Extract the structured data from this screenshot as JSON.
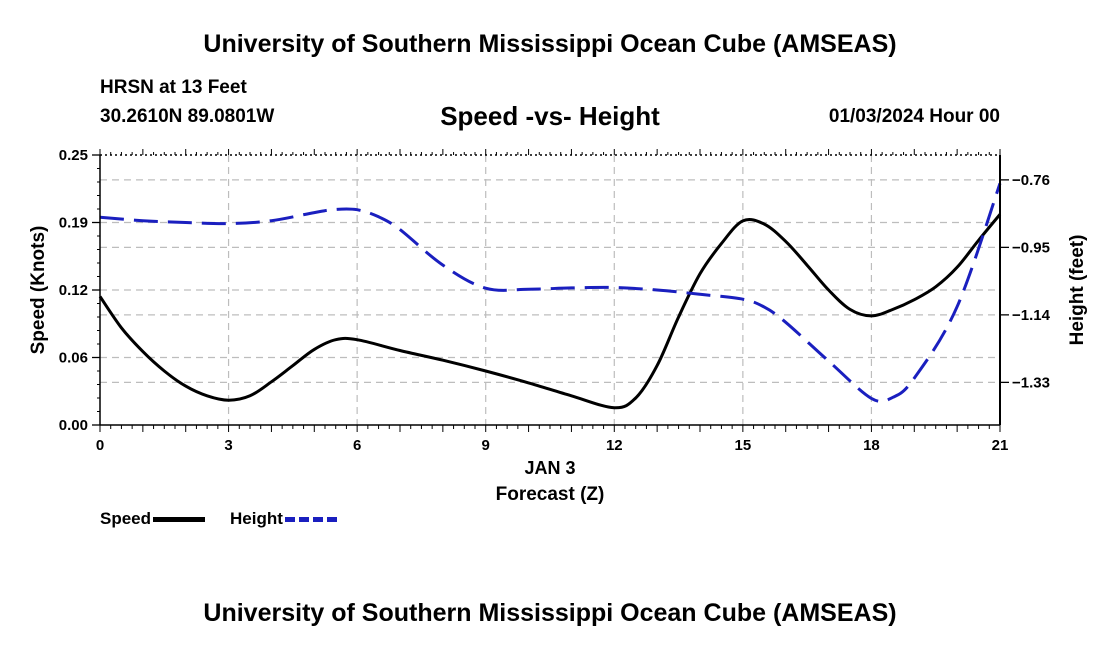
{
  "header": {
    "title": "University of Southern Mississippi Ocean Cube (AMSEAS)",
    "station": "HRSN at 13 Feet",
    "coords": "30.2610N  89.0801W",
    "subtitle": "Speed -vs- Height",
    "datetime": "01/03/2024 Hour 00"
  },
  "footer": {
    "title": "University of Southern Mississippi Ocean Cube (AMSEAS)"
  },
  "legend": {
    "speed": "Speed",
    "height": "Height"
  },
  "colors": {
    "speed": "#000000",
    "height": "#1a1fbf",
    "grid": "#bdbdbd"
  },
  "chart_data": {
    "type": "line",
    "title": "Speed -vs- Height",
    "xlabel": "Forecast (Z)",
    "xlabel_date": "JAN 3",
    "ylabel": "Speed (Knots)",
    "y2label": "Height (feet)",
    "xlim": [
      0,
      21
    ],
    "ylim": [
      0,
      0.25
    ],
    "y2lim": [
      -1.45,
      -0.69
    ],
    "x_ticks": [
      0,
      3,
      6,
      9,
      12,
      15,
      18,
      21
    ],
    "x_tick_labels": [
      "0",
      "3",
      "6",
      "9",
      "12",
      "15",
      "18",
      "21"
    ],
    "y_ticks": [
      0,
      0.0625,
      0.125,
      0.1875,
      0.25
    ],
    "y_tick_labels": [
      "0.00",
      "0.06",
      "0.12",
      "0.19",
      "0.25"
    ],
    "y2_ticks": [
      -0.76,
      -0.95,
      -1.14,
      -1.33
    ],
    "y2_tick_labels": [
      "−0.76",
      "−0.95",
      "−1.14",
      "−1.33"
    ],
    "grid": true,
    "series": [
      {
        "name": "Speed",
        "axis": "left",
        "style": "solid",
        "x": [
          0,
          0.5,
          1,
          1.5,
          2,
          2.5,
          3,
          3.5,
          4,
          4.5,
          5,
          5.5,
          6,
          7,
          8,
          9,
          10,
          11,
          12,
          12.5,
          13,
          13.5,
          14,
          14.5,
          15,
          15.5,
          16,
          16.5,
          17,
          17.5,
          18,
          18.5,
          19,
          19.5,
          20,
          20.5,
          21
        ],
        "values": [
          0.119,
          0.09,
          0.068,
          0.05,
          0.036,
          0.027,
          0.023,
          0.027,
          0.04,
          0.055,
          0.07,
          0.079,
          0.079,
          0.069,
          0.06,
          0.05,
          0.039,
          0.027,
          0.016,
          0.025,
          0.055,
          0.1,
          0.14,
          0.168,
          0.189,
          0.186,
          0.17,
          0.148,
          0.125,
          0.107,
          0.101,
          0.107,
          0.116,
          0.128,
          0.146,
          0.171,
          0.195
        ]
      },
      {
        "name": "Height",
        "axis": "right",
        "style": "dashed",
        "x": [
          0,
          1,
          2,
          3,
          4,
          5,
          5.5,
          6,
          6.5,
          7,
          8,
          9,
          10,
          11,
          12,
          13,
          14,
          15,
          15.5,
          16,
          17,
          18,
          18.5,
          19,
          20,
          21
        ],
        "values": [
          -0.865,
          -0.875,
          -0.88,
          -0.883,
          -0.875,
          -0.852,
          -0.843,
          -0.844,
          -0.864,
          -0.9,
          -1.0,
          -1.065,
          -1.068,
          -1.064,
          -1.063,
          -1.07,
          -1.082,
          -1.096,
          -1.118,
          -1.161,
          -1.27,
          -1.375,
          -1.372,
          -1.318,
          -1.117,
          -0.77
        ]
      }
    ]
  }
}
